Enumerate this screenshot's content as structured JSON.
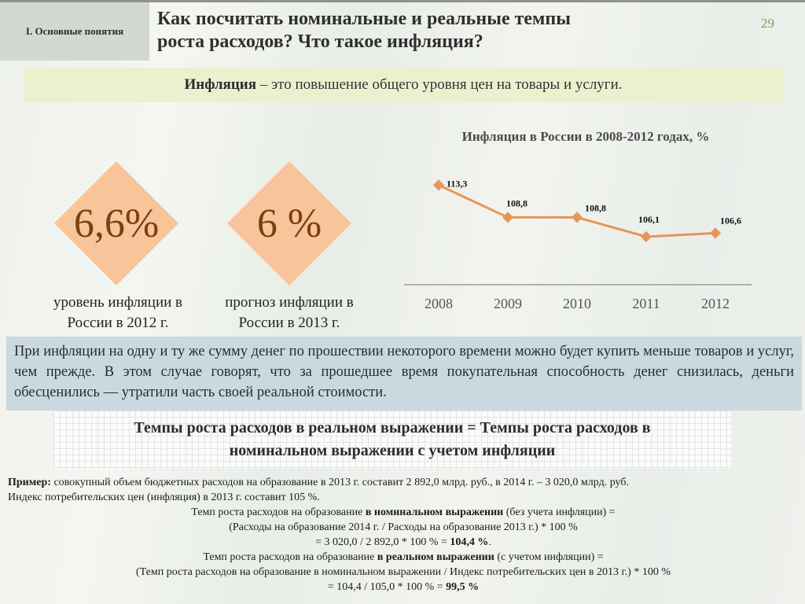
{
  "header": {
    "section": "I. Основные понятия",
    "title_line1": "Как посчитать номинальные и реальные темпы",
    "title_line2": "роста расходов? Что такое инфляция?",
    "page_number": "29"
  },
  "definition": {
    "term": "Инфляция",
    "text": " – это повышение общего уровня цен на товары и услуги."
  },
  "highlights": [
    {
      "value": "6,6%",
      "caption_line1": "уровень инфляции в",
      "caption_line2": "России в 2012 г."
    },
    {
      "value": "6 %",
      "caption_line1": "прогноз инфляции в",
      "caption_line2": "России в 2013 г."
    }
  ],
  "colors": {
    "diamond": "#f8c49a",
    "diamond_text": "#7a3f14",
    "line": "#e8955a",
    "info_bg": "#c9d9df",
    "def_bg": "#edf0cf",
    "page_number": "#7f9a5e"
  },
  "chart_data": {
    "type": "line",
    "title": "Инфляция в России в 2008-2012 годах, %",
    "categories": [
      "2008",
      "2009",
      "2010",
      "2011",
      "2012"
    ],
    "values": [
      113.3,
      108.8,
      108.8,
      106.1,
      106.6
    ],
    "labels": [
      "113,3",
      "108,8",
      "108,8",
      "106,1",
      "106,6"
    ],
    "xlabel": "",
    "ylabel": "",
    "grid": false,
    "legend": "none"
  },
  "info": {
    "text": "При инфляции на одну и ту же сумму денег по прошествии некоторого времени можно будет купить меньше товаров и услуг, чем прежде. В этом случае говорят, что за прошедшее время покупательная способность денег снизилась, деньги обесценились — утратили часть своей реальной стоимости."
  },
  "formula": {
    "line1": "Темпы роста расходов в реальном выражении = Темпы роста расходов в",
    "line2": "номинальном выражении с учетом инфляции"
  },
  "example": {
    "label": "Пример:",
    "line1": " совокупный объем бюджетных расходов на образование в 2013 г. составит 2 892,0 млрд. руб., в 2014 г. – 3 020,0 млрд. руб.",
    "line2": "Индекс потребительских цен (инфляция) в 2013 г. составит 105 %.",
    "nominal_pre": "Темп роста расходов на образование ",
    "nominal_bold": "в номинальном выражении",
    "nominal_post": " (без учета инфляции) =",
    "nominal_formula": "(Расходы на образование 2014 г. / Расходы на образование 2013 г.) * 100 %",
    "nominal_calc": "= 3 020,0 / 2 892,0 * 100 % = ",
    "nominal_result": "104,4 %",
    "nominal_end": ".",
    "real_pre": "Темп роста расходов на образование ",
    "real_bold": "в реальном выражении",
    "real_post": " (с учетом инфляции) =",
    "real_formula": "(Темп роста расходов на образование в номинальном выражении / Индекс потребительских цен в 2013 г.) * 100 %",
    "real_calc": "= 104,4 / 105,0  * 100 % = ",
    "real_result": "99,5 %"
  }
}
